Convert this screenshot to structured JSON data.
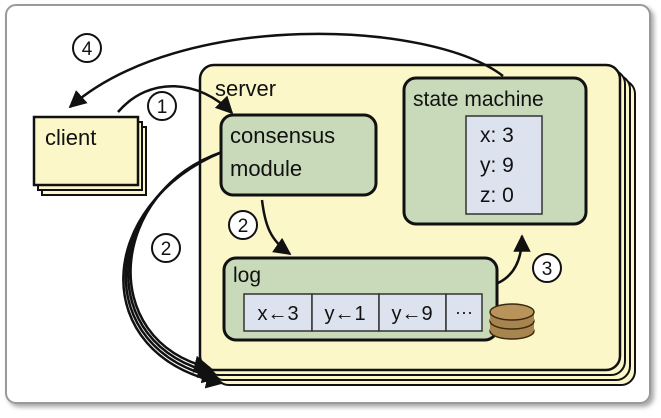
{
  "client": {
    "label": "client"
  },
  "server": {
    "label": "server"
  },
  "consensus": {
    "line1": "consensus",
    "line2": "module"
  },
  "state_machine": {
    "label": "state machine",
    "vars": [
      "x: 3",
      "y: 9",
      "z: 0"
    ]
  },
  "log": {
    "label": "log",
    "entries": [
      "x←3",
      "y←1",
      "y←9",
      "···"
    ]
  },
  "steps": {
    "client_to_consensus": "1",
    "consensus_to_log": "2",
    "consensus_to_peers": "2",
    "log_to_state_machine": "3",
    "server_to_client": "4"
  },
  "icons": {
    "storage": "disk-stack-icon"
  },
  "colors": {
    "frame": "#9a9a9a",
    "server_fill": "#fbf7c8",
    "module_fill": "#c8dab9",
    "module_stroke": "#111111",
    "cell_fill": "#dce3ef"
  }
}
